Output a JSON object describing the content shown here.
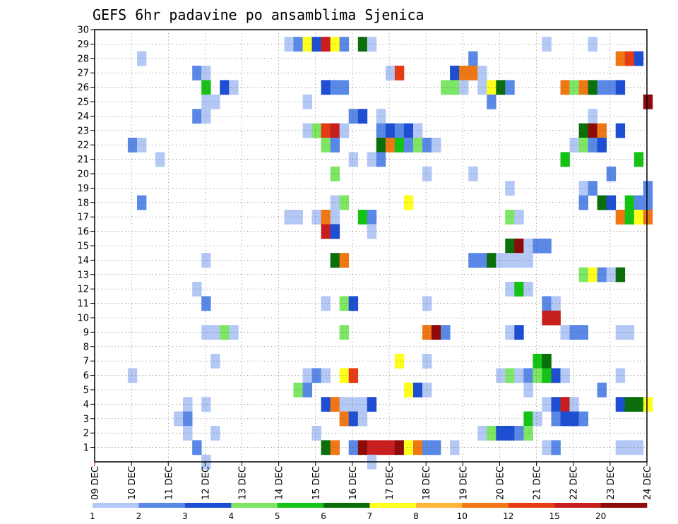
{
  "chart_data": {
    "type": "heatmap",
    "title": "GEFS 6hr padavine po ansamblima Sjenica",
    "x_ticks": [
      "09 DEC",
      "10 DEC",
      "11 DEC",
      "12 DEC",
      "13 DEC",
      "14 DEC",
      "15 DEC",
      "16 DEC",
      "17 DEC",
      "18 DEC",
      "19 DEC",
      "20 DEC",
      "21 DEC",
      "22 DEC",
      "23 DEC",
      "24 DEC"
    ],
    "y_ticks": [
      "1",
      "2",
      "3",
      "4",
      "5",
      "6",
      "7",
      "8",
      "9",
      "10",
      "11",
      "12",
      "13",
      "14",
      "15",
      "16",
      "17",
      "18",
      "19",
      "20",
      "21",
      "22",
      "23",
      "24",
      "25",
      "26",
      "27",
      "28",
      "29",
      "30"
    ],
    "grid": true,
    "colorbar": {
      "labels": [
        "1",
        "2",
        "3",
        "4",
        "5",
        "6",
        "7",
        "8",
        "10",
        "12",
        "15",
        "20"
      ],
      "colors": [
        "#b4c8f5",
        "#5a88e6",
        "#1e4fd2",
        "#7de664",
        "#14c314",
        "#0a6e0a",
        "#ffff1e",
        "#ffb43c",
        "#f07814",
        "#e63c14",
        "#c81e1e",
        "#8c0a0a"
      ]
    },
    "cells": [
      [
        29,
        14.15,
        1
      ],
      [
        29,
        14.4,
        2
      ],
      [
        29,
        14.65,
        7
      ],
      [
        29,
        14.9,
        3
      ],
      [
        29,
        15.15,
        11
      ],
      [
        29,
        15.4,
        7
      ],
      [
        29,
        15.65,
        2
      ],
      [
        29,
        16.15,
        6
      ],
      [
        29,
        16.4,
        1
      ],
      [
        29,
        21.15,
        1
      ],
      [
        29,
        22.4,
        1
      ],
      [
        28,
        10.15,
        1
      ],
      [
        28,
        19.15,
        2
      ],
      [
        28,
        23.15,
        9
      ],
      [
        28,
        23.4,
        10
      ],
      [
        28,
        23.65,
        3
      ],
      [
        27,
        11.65,
        2
      ],
      [
        27,
        11.9,
        1
      ],
      [
        27,
        16.9,
        1
      ],
      [
        27,
        17.15,
        10
      ],
      [
        27,
        18.65,
        3
      ],
      [
        27,
        18.9,
        9
      ],
      [
        27,
        19.15,
        9
      ],
      [
        27,
        19.4,
        1
      ],
      [
        26,
        11.9,
        5
      ],
      [
        26,
        12.4,
        3
      ],
      [
        26,
        12.65,
        1
      ],
      [
        26,
        15.15,
        3
      ],
      [
        26,
        15.4,
        2
      ],
      [
        26,
        15.65,
        2
      ],
      [
        26,
        18.4,
        4
      ],
      [
        26,
        18.65,
        4
      ],
      [
        26,
        18.9,
        1
      ],
      [
        26,
        19.4,
        1
      ],
      [
        26,
        19.65,
        7
      ],
      [
        26,
        19.9,
        6
      ],
      [
        26,
        20.15,
        2
      ],
      [
        26,
        21.65,
        9
      ],
      [
        26,
        21.9,
        4
      ],
      [
        26,
        22.15,
        9
      ],
      [
        26,
        22.4,
        6
      ],
      [
        26,
        22.65,
        2
      ],
      [
        26,
        22.9,
        2
      ],
      [
        26,
        23.15,
        3
      ],
      [
        25,
        11.9,
        1
      ],
      [
        25,
        12.15,
        1
      ],
      [
        25,
        14.65,
        1
      ],
      [
        25,
        19.65,
        2
      ],
      [
        25,
        23.9,
        12
      ],
      [
        24,
        11.65,
        2
      ],
      [
        24,
        11.9,
        1
      ],
      [
        24,
        15.9,
        2
      ],
      [
        24,
        16.15,
        3
      ],
      [
        24,
        16.65,
        1
      ],
      [
        24,
        22.4,
        1
      ],
      [
        23,
        14.65,
        1
      ],
      [
        23,
        14.9,
        4
      ],
      [
        23,
        15.15,
        10
      ],
      [
        23,
        15.4,
        11
      ],
      [
        23,
        15.65,
        1
      ],
      [
        23,
        16.65,
        2
      ],
      [
        23,
        16.9,
        3
      ],
      [
        23,
        17.15,
        2
      ],
      [
        23,
        17.4,
        3
      ],
      [
        23,
        17.65,
        1
      ],
      [
        23,
        22.15,
        6
      ],
      [
        23,
        22.4,
        12
      ],
      [
        23,
        22.65,
        9
      ],
      [
        23,
        23.15,
        3
      ],
      [
        22,
        9.9,
        2
      ],
      [
        22,
        10.15,
        1
      ],
      [
        22,
        15.15,
        4
      ],
      [
        22,
        15.4,
        2
      ],
      [
        22,
        16.65,
        6
      ],
      [
        22,
        16.9,
        9
      ],
      [
        22,
        17.15,
        5
      ],
      [
        22,
        17.4,
        2
      ],
      [
        22,
        17.65,
        4
      ],
      [
        22,
        17.9,
        2
      ],
      [
        22,
        18.15,
        1
      ],
      [
        22,
        21.9,
        1
      ],
      [
        22,
        22.15,
        4
      ],
      [
        22,
        22.4,
        2
      ],
      [
        22,
        22.65,
        3
      ],
      [
        21,
        10.65,
        1
      ],
      [
        21,
        15.9,
        1
      ],
      [
        21,
        16.4,
        1
      ],
      [
        21,
        16.65,
        2
      ],
      [
        21,
        21.65,
        5
      ],
      [
        21,
        23.65,
        5
      ],
      [
        20,
        15.4,
        4
      ],
      [
        20,
        17.9,
        1
      ],
      [
        20,
        19.15,
        1
      ],
      [
        20,
        22.9,
        2
      ],
      [
        19,
        20.15,
        1
      ],
      [
        19,
        22.15,
        1
      ],
      [
        19,
        22.4,
        2
      ],
      [
        19,
        23.9,
        2
      ],
      [
        18,
        10.15,
        2
      ],
      [
        18,
        15.4,
        1
      ],
      [
        18,
        15.65,
        4
      ],
      [
        18,
        17.4,
        7
      ],
      [
        18,
        22.15,
        2
      ],
      [
        18,
        22.65,
        6
      ],
      [
        18,
        22.9,
        3
      ],
      [
        18,
        23.4,
        5
      ],
      [
        18,
        23.65,
        2
      ],
      [
        18,
        23.9,
        2
      ],
      [
        17,
        14.15,
        1
      ],
      [
        17,
        14.4,
        1
      ],
      [
        17,
        14.9,
        1
      ],
      [
        17,
        15.15,
        9
      ],
      [
        17,
        15.4,
        1
      ],
      [
        17,
        16.15,
        5
      ],
      [
        17,
        16.4,
        2
      ],
      [
        17,
        20.15,
        4
      ],
      [
        17,
        20.4,
        1
      ],
      [
        17,
        23.15,
        9
      ],
      [
        17,
        23.4,
        5
      ],
      [
        17,
        23.65,
        7
      ],
      [
        17,
        23.9,
        9
      ],
      [
        16,
        15.15,
        11
      ],
      [
        16,
        15.4,
        3
      ],
      [
        16,
        16.4,
        1
      ],
      [
        15,
        20.15,
        6
      ],
      [
        15,
        20.4,
        12
      ],
      [
        15,
        20.65,
        1
      ],
      [
        15,
        20.9,
        2
      ],
      [
        15,
        21.15,
        2
      ],
      [
        14,
        11.9,
        1
      ],
      [
        14,
        15.4,
        6
      ],
      [
        14,
        15.65,
        9
      ],
      [
        14,
        19.15,
        2
      ],
      [
        14,
        19.4,
        2
      ],
      [
        14,
        19.65,
        6
      ],
      [
        14,
        19.9,
        1
      ],
      [
        14,
        20.15,
        1
      ],
      [
        14,
        20.4,
        1
      ],
      [
        14,
        20.65,
        1
      ],
      [
        13,
        22.15,
        4
      ],
      [
        13,
        22.4,
        7
      ],
      [
        13,
        22.65,
        2
      ],
      [
        13,
        22.9,
        1
      ],
      [
        13,
        23.15,
        6
      ],
      [
        12,
        11.65,
        1
      ],
      [
        12,
        20.15,
        1
      ],
      [
        12,
        20.4,
        5
      ],
      [
        12,
        20.65,
        1
      ],
      [
        11,
        11.9,
        2
      ],
      [
        11,
        15.15,
        1
      ],
      [
        11,
        15.65,
        4
      ],
      [
        11,
        15.9,
        3
      ],
      [
        11,
        17.9,
        1
      ],
      [
        11,
        21.15,
        2
      ],
      [
        11,
        21.4,
        1
      ],
      [
        10,
        21.15,
        11
      ],
      [
        10,
        21.4,
        11
      ],
      [
        9,
        11.9,
        1
      ],
      [
        9,
        12.15,
        1
      ],
      [
        9,
        12.4,
        4
      ],
      [
        9,
        12.65,
        1
      ],
      [
        9,
        15.65,
        4
      ],
      [
        9,
        17.9,
        9
      ],
      [
        9,
        18.15,
        12
      ],
      [
        9,
        18.4,
        2
      ],
      [
        9,
        20.15,
        1
      ],
      [
        9,
        20.4,
        3
      ],
      [
        9,
        21.65,
        1
      ],
      [
        9,
        21.9,
        2
      ],
      [
        9,
        22.15,
        2
      ],
      [
        9,
        23.15,
        1
      ],
      [
        9,
        23.4,
        1
      ],
      [
        7,
        12.15,
        1
      ],
      [
        7,
        17.15,
        7
      ],
      [
        7,
        17.9,
        1
      ],
      [
        7,
        20.9,
        5
      ],
      [
        7,
        21.15,
        6
      ],
      [
        6,
        9.9,
        1
      ],
      [
        6,
        14.65,
        1
      ],
      [
        6,
        14.9,
        2
      ],
      [
        6,
        15.15,
        1
      ],
      [
        6,
        15.65,
        7
      ],
      [
        6,
        15.9,
        10
      ],
      [
        6,
        19.9,
        1
      ],
      [
        6,
        20.15,
        4
      ],
      [
        6,
        20.4,
        1
      ],
      [
        6,
        20.65,
        2
      ],
      [
        6,
        20.9,
        4
      ],
      [
        6,
        21.15,
        5
      ],
      [
        6,
        21.4,
        3
      ],
      [
        6,
        21.65,
        1
      ],
      [
        6,
        23.15,
        1
      ],
      [
        5,
        14.4,
        4
      ],
      [
        5,
        14.65,
        2
      ],
      [
        5,
        17.4,
        7
      ],
      [
        5,
        17.65,
        3
      ],
      [
        5,
        17.9,
        1
      ],
      [
        5,
        20.65,
        1
      ],
      [
        5,
        22.65,
        2
      ],
      [
        4,
        11.4,
        1
      ],
      [
        4,
        11.9,
        1
      ],
      [
        4,
        15.15,
        3
      ],
      [
        4,
        15.4,
        9
      ],
      [
        4,
        15.65,
        1
      ],
      [
        4,
        15.9,
        1
      ],
      [
        4,
        16.15,
        1
      ],
      [
        4,
        16.4,
        3
      ],
      [
        4,
        21.15,
        1
      ],
      [
        4,
        21.4,
        3
      ],
      [
        4,
        21.65,
        11
      ],
      [
        4,
        21.9,
        1
      ],
      [
        4,
        23.15,
        3
      ],
      [
        4,
        23.4,
        6
      ],
      [
        4,
        23.65,
        6
      ],
      [
        4,
        23.9,
        7
      ],
      [
        3,
        11.15,
        1
      ],
      [
        3,
        11.4,
        2
      ],
      [
        3,
        15.65,
        9
      ],
      [
        3,
        15.9,
        3
      ],
      [
        3,
        16.15,
        1
      ],
      [
        3,
        20.65,
        5
      ],
      [
        3,
        20.9,
        1
      ],
      [
        3,
        21.4,
        2
      ],
      [
        3,
        21.65,
        3
      ],
      [
        3,
        21.9,
        3
      ],
      [
        3,
        22.15,
        2
      ],
      [
        2,
        11.4,
        1
      ],
      [
        2,
        12.15,
        1
      ],
      [
        2,
        14.9,
        1
      ],
      [
        2,
        19.4,
        1
      ],
      [
        2,
        19.65,
        4
      ],
      [
        2,
        19.9,
        3
      ],
      [
        2,
        20.15,
        3
      ],
      [
        2,
        20.4,
        2
      ],
      [
        2,
        20.65,
        4
      ],
      [
        1,
        11.65,
        2
      ],
      [
        1,
        15.15,
        6
      ],
      [
        1,
        15.4,
        9
      ],
      [
        1,
        15.9,
        2
      ],
      [
        1,
        16.15,
        12
      ],
      [
        1,
        16.4,
        11
      ],
      [
        1,
        16.65,
        11
      ],
      [
        1,
        16.9,
        11
      ],
      [
        1,
        17.15,
        12
      ],
      [
        1,
        17.4,
        7
      ],
      [
        1,
        17.65,
        9
      ],
      [
        1,
        17.9,
        2
      ],
      [
        1,
        18.15,
        2
      ],
      [
        1,
        18.65,
        1
      ],
      [
        1,
        21.15,
        1
      ],
      [
        1,
        21.4,
        2
      ],
      [
        1,
        23.15,
        1
      ],
      [
        1,
        23.4,
        1
      ],
      [
        1,
        23.65,
        1
      ],
      [
        0,
        11.9,
        1
      ],
      [
        0,
        16.4,
        1
      ]
    ]
  }
}
